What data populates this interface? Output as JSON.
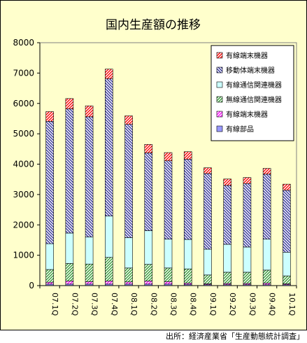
{
  "source_note": "出所：経済産業省「生産動態統計調査」",
  "chart_data": {
    "type": "bar",
    "stacked": true,
    "title": "国内生産額の推移",
    "xlabel": "",
    "ylabel": "",
    "ylim": [
      0,
      8000
    ],
    "yticks": [
      0,
      1000,
      2000,
      3000,
      4000,
      5000,
      6000,
      7000,
      8000
    ],
    "grid": false,
    "legend_position": "top-right",
    "categories": [
      "07.1Q",
      "07.2Q",
      "07.3Q",
      "07.4Q",
      "08.1Q",
      "08.2Q",
      "08.3Q",
      "08.4Q",
      "09.1Q",
      "09.2Q",
      "09.3Q",
      "09.4Q",
      "10.1Q"
    ],
    "series": [
      {
        "name": "有線部品",
        "color": "#9999ff",
        "pattern": "solid",
        "values": [
          50,
          50,
          50,
          50,
          50,
          50,
          50,
          40,
          30,
          30,
          30,
          30,
          30
        ]
      },
      {
        "name": "有線端末機器",
        "color": "#ff00ff",
        "pattern": "diag-r",
        "values": [
          60,
          100,
          80,
          100,
          70,
          100,
          80,
          40,
          30,
          40,
          40,
          50,
          30
        ]
      },
      {
        "name": "無線通信関連機器",
        "color": "#339933",
        "pattern": "diag-r",
        "values": [
          420,
          580,
          580,
          780,
          460,
          550,
          450,
          470,
          290,
          370,
          370,
          430,
          260
        ]
      },
      {
        "name": "有線通信関連機器",
        "color": "#ccffff",
        "pattern": "solid",
        "values": [
          850,
          1000,
          890,
          1360,
          1000,
          1110,
          950,
          970,
          850,
          920,
          830,
          1020,
          780
        ]
      },
      {
        "name": "移動体端末機器",
        "color": "#333399",
        "pattern": "diag-l",
        "values": [
          4030,
          4090,
          3960,
          4520,
          3730,
          2560,
          2580,
          2640,
          2490,
          1940,
          2090,
          2140,
          2040
        ]
      },
      {
        "name": "有線端末機器",
        "color": "#ff0000",
        "pattern": "diag-r",
        "values": [
          320,
          340,
          360,
          320,
          280,
          280,
          270,
          250,
          190,
          210,
          200,
          190,
          200
        ]
      }
    ],
    "legend_order": [
      5,
      4,
      3,
      2,
      1,
      0
    ]
  }
}
